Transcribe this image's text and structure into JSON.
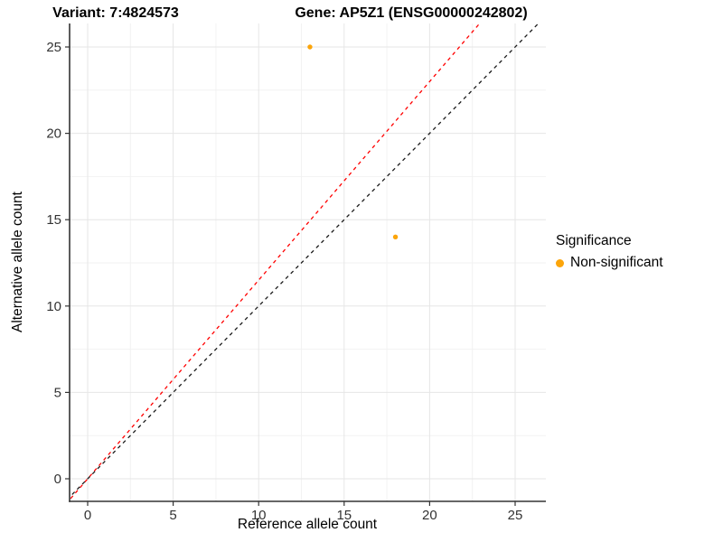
{
  "chart_data": {
    "type": "scatter",
    "title_left": "Variant: 7:4824573",
    "title_right": "Gene: AP5Z1 (ENSG00000242802)",
    "xlabel": "Reference allele count",
    "ylabel": "Alternative allele count",
    "xticks": [
      0,
      5,
      10,
      15,
      20,
      25
    ],
    "yticks": [
      0,
      5,
      10,
      15,
      20,
      25
    ],
    "xminor": [
      2.5,
      7.5,
      12.5,
      17.5,
      22.5
    ],
    "yminor": [
      2.5,
      7.5,
      12.5,
      17.5,
      22.5
    ],
    "xlim": [
      -1.1,
      26.8
    ],
    "ylim": [
      -1.3,
      26.4
    ],
    "grid": true,
    "legend_position": "right",
    "points": [
      {
        "x": 13,
        "y": 25,
        "group": "Non-significant"
      },
      {
        "x": 18,
        "y": 14,
        "group": "Non-significant"
      }
    ],
    "point_color": "#FCA50A",
    "reference_lines": [
      {
        "name": "expected-ratio-line",
        "slope": 1.15,
        "intercept": 0,
        "color": "#FF0000",
        "style": "dashed"
      },
      {
        "name": "identity-line",
        "slope": 1.0,
        "intercept": 0,
        "color": "#1A1A1A",
        "style": "dashed"
      }
    ],
    "legend": {
      "title": "Significance",
      "items": [
        {
          "label": "Non-significant",
          "color": "#FCA50A"
        }
      ]
    },
    "colors": {
      "grid_major": "#E6E6E6",
      "grid_minor": "#F2F2F2",
      "axis_line": "#333333",
      "tick_text": "#333333"
    }
  }
}
